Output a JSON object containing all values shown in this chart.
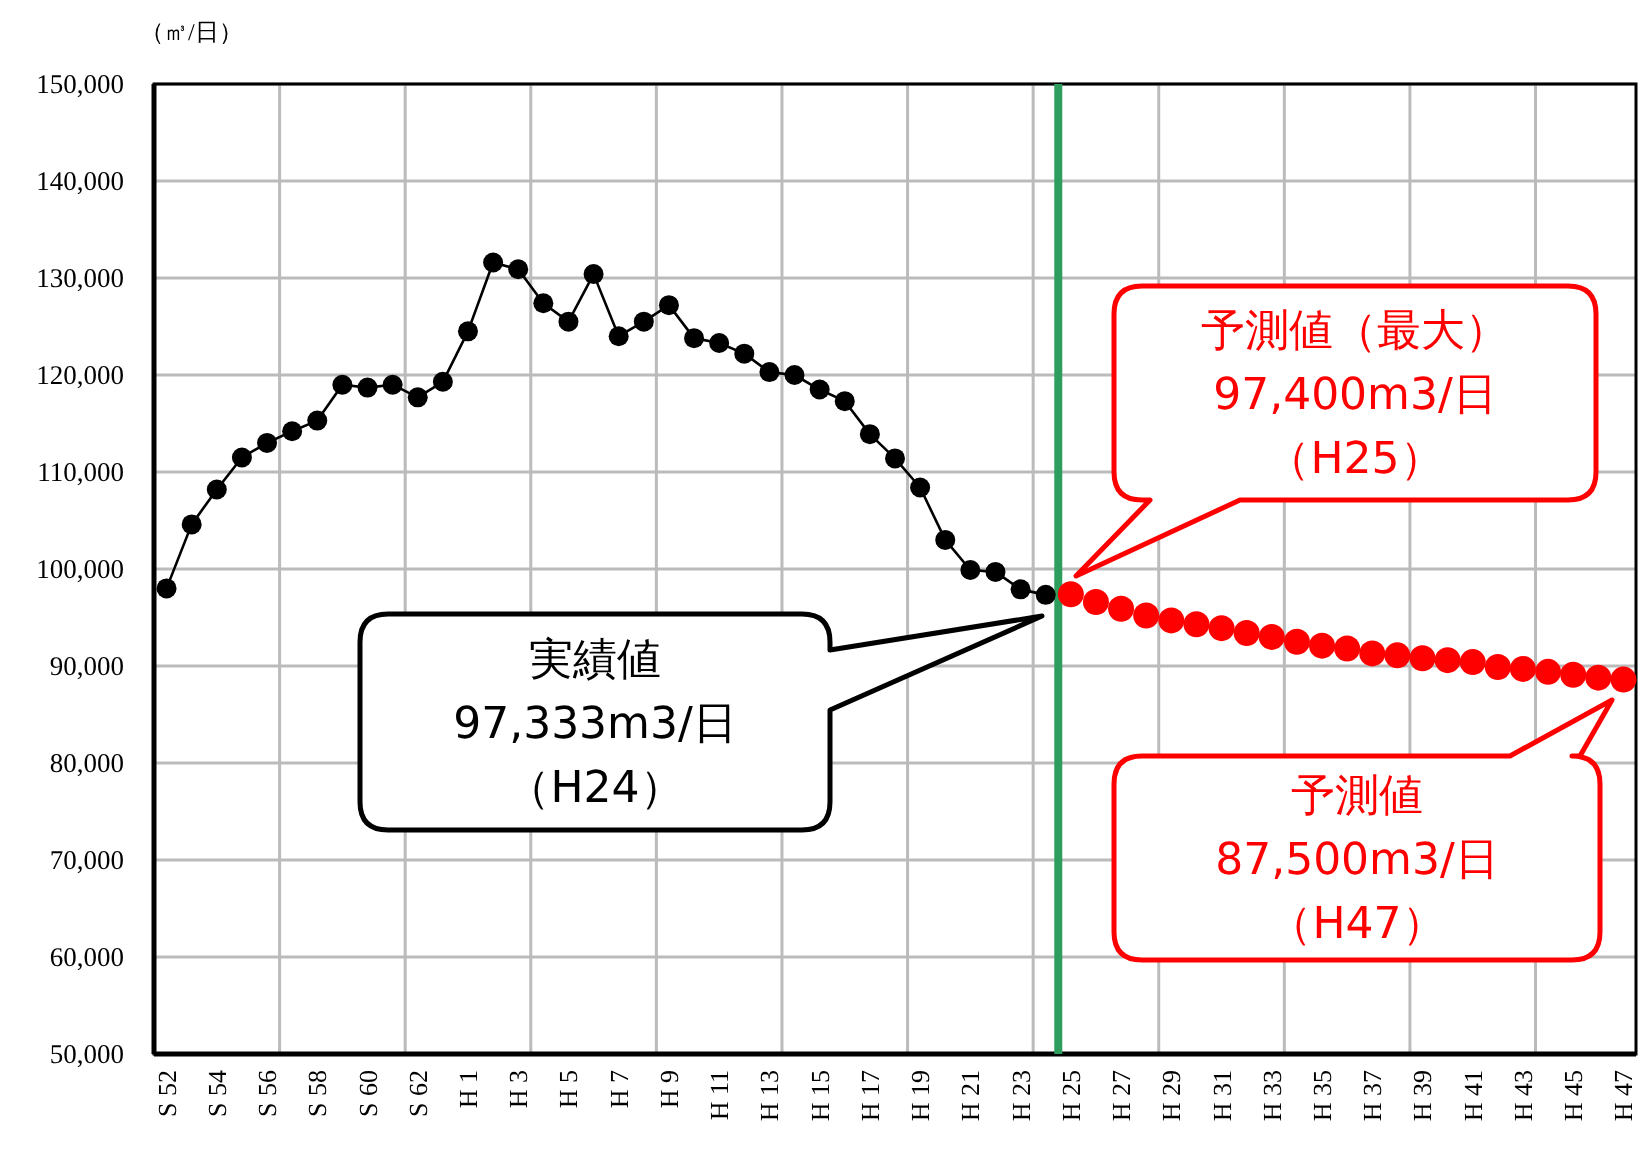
{
  "chart_data": {
    "type": "line",
    "ylabel": "（㎥/日）",
    "marker": "circle",
    "grid": true,
    "categories": [
      "S 52",
      null,
      "S 54",
      null,
      "S 56",
      null,
      "S 58",
      null,
      "S 60",
      null,
      "S 62",
      null,
      "H 1",
      null,
      "H 3",
      null,
      "H 5",
      null,
      "H 7",
      null,
      "H 9",
      null,
      "H 11",
      null,
      "H 13",
      null,
      "H 15",
      null,
      "H 17",
      null,
      "H 19",
      null,
      "H 21",
      null,
      "H 23",
      null,
      "H 25",
      null,
      "H 27",
      null,
      "H 29",
      null,
      "H 31",
      null,
      "H 33",
      null,
      "H 35",
      null,
      "H 37",
      null,
      "H 39",
      null,
      "H 41",
      null,
      "H 43",
      null,
      "H 45",
      null,
      "H 47"
    ],
    "ylim": [
      50000,
      150000
    ],
    "yticks": [
      {
        "value": 50000,
        "label": "50,000"
      },
      {
        "value": 60000,
        "label": "60,000"
      },
      {
        "value": 70000,
        "label": "70,000"
      },
      {
        "value": 80000,
        "label": "80,000"
      },
      {
        "value": 90000,
        "label": "90,000"
      },
      {
        "value": 100000,
        "label": "100,000"
      },
      {
        "value": 110000,
        "label": "110,000"
      },
      {
        "value": 120000,
        "label": "120,000"
      },
      {
        "value": 130000,
        "label": "130,000"
      },
      {
        "value": 140000,
        "label": "140,000"
      },
      {
        "value": 150000,
        "label": "150,000"
      }
    ],
    "ref_lines": [
      {
        "axis": "x",
        "value": "H 25",
        "color": "#2e9e5e"
      }
    ],
    "series": [
      {
        "color": "#000000",
        "values": [
          98000,
          104600,
          108200,
          111500,
          113000,
          114200,
          115300,
          119000,
          118700,
          119000,
          117700,
          119300,
          124500,
          131600,
          130900,
          127400,
          125500,
          130400,
          124000,
          125500,
          127200,
          123800,
          123300,
          122200,
          120300,
          120000,
          118500,
          117300,
          113900,
          111400,
          108400,
          103000,
          99900,
          99700,
          97900,
          97333,
          null,
          null,
          null,
          null,
          null,
          null,
          null,
          null,
          null,
          null,
          null,
          null,
          null,
          null,
          null,
          null,
          null,
          null,
          null,
          null,
          null,
          null,
          null
        ]
      },
      {
        "type": "scatter",
        "color": "#ff0000",
        "values": [
          null,
          null,
          null,
          null,
          null,
          null,
          null,
          null,
          null,
          null,
          null,
          null,
          null,
          null,
          null,
          null,
          null,
          null,
          null,
          null,
          null,
          null,
          null,
          null,
          null,
          null,
          null,
          null,
          null,
          null,
          null,
          null,
          null,
          null,
          null,
          null,
          97400,
          96600,
          95900,
          95200,
          94700,
          94300,
          93900,
          93400,
          93000,
          92500,
          92100,
          91800,
          91300,
          91100,
          90800,
          90600,
          90400,
          89900,
          89700,
          89400,
          89100,
          88800,
          88600
        ]
      }
    ],
    "annotations": [
      "実績値97,333m3/日（H24）",
      "予測値（最大）97,400m3/日（H25）",
      "予測値87,500m3/日（H47）"
    ]
  }
}
